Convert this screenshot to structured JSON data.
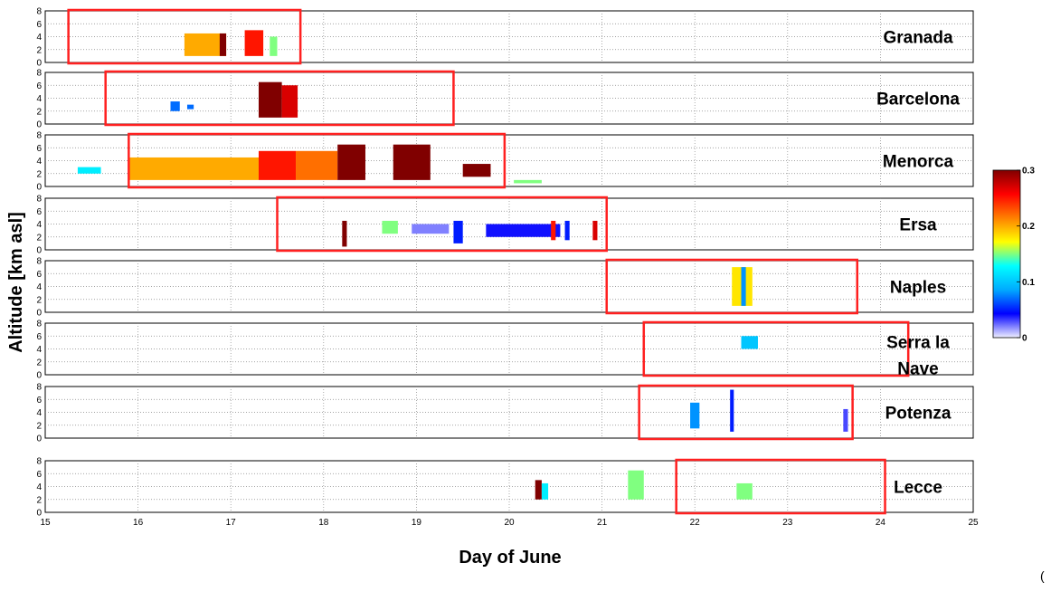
{
  "chart_data": {
    "type": "heatmap",
    "xlabel": "Day of June",
    "ylabel": "Altitude [km asl]",
    "xlim": [
      15,
      25
    ],
    "x_ticks": [
      "15",
      "16",
      "17",
      "18",
      "19",
      "20",
      "21",
      "22",
      "23",
      "24",
      "25"
    ],
    "ylim": [
      0,
      8
    ],
    "y_ticks": [
      "0",
      "2",
      "4",
      "6",
      "8"
    ],
    "grid": true,
    "colorbar": {
      "colors": [
        "#f0f0ff",
        "#0000ff",
        "#00aaff",
        "#00ffff",
        "#ffff00",
        "#ff8000",
        "#ff0000",
        "#800000"
      ],
      "range": [
        0,
        0.3
      ],
      "tick_labels": [
        "0",
        "0.1",
        "0.2",
        "0.3"
      ],
      "tick_values": [
        0,
        0.1,
        0.2,
        0.3
      ]
    },
    "panels": [
      {
        "station": "Granada",
        "label_lines": [
          "Granada"
        ],
        "highlight": [
          15.25,
          17.75
        ],
        "segments": [
          {
            "x0": 16.5,
            "x1": 16.95,
            "y0": 1,
            "y1": 4.5,
            "value": 0.2
          },
          {
            "x0": 16.88,
            "x1": 16.95,
            "y0": 1,
            "y1": 4.5,
            "value": 0.3
          },
          {
            "x0": 17.15,
            "x1": 17.35,
            "y0": 1,
            "y1": 5,
            "value": 0.25
          },
          {
            "x0": 17.42,
            "x1": 17.5,
            "y0": 1,
            "y1": 4,
            "value": 0.15
          }
        ]
      },
      {
        "station": "Barcelona",
        "label_lines": [
          "Barcelona"
        ],
        "highlight": [
          15.65,
          19.4
        ],
        "segments": [
          {
            "x0": 16.35,
            "x1": 16.45,
            "y0": 2,
            "y1": 3.5,
            "value": 0.07
          },
          {
            "x0": 16.53,
            "x1": 16.6,
            "y0": 2.3,
            "y1": 3,
            "value": 0.07
          },
          {
            "x0": 17.3,
            "x1": 17.55,
            "y0": 1,
            "y1": 6.5,
            "value": 0.3
          },
          {
            "x0": 17.55,
            "x1": 17.72,
            "y0": 1,
            "y1": 6,
            "value": 0.27
          }
        ]
      },
      {
        "station": "Menorca",
        "label_lines": [
          "Menorca"
        ],
        "highlight": [
          15.9,
          19.95
        ],
        "segments": [
          {
            "x0": 15.35,
            "x1": 15.6,
            "y0": 2,
            "y1": 3,
            "value": 0.12
          },
          {
            "x0": 15.9,
            "x1": 17.3,
            "y0": 1,
            "y1": 4.5,
            "value": 0.2
          },
          {
            "x0": 17.3,
            "x1": 17.7,
            "y0": 1,
            "y1": 5.5,
            "value": 0.25
          },
          {
            "x0": 17.7,
            "x1": 18.15,
            "y0": 1,
            "y1": 5.5,
            "value": 0.22
          },
          {
            "x0": 18.15,
            "x1": 18.45,
            "y0": 1,
            "y1": 6.5,
            "value": 0.3
          },
          {
            "x0": 18.75,
            "x1": 19.15,
            "y0": 1,
            "y1": 6.5,
            "value": 0.3
          },
          {
            "x0": 19.5,
            "x1": 19.8,
            "y0": 1.5,
            "y1": 3.5,
            "value": 0.3
          },
          {
            "x0": 20.05,
            "x1": 20.35,
            "y0": 0.5,
            "y1": 1,
            "value": 0.15
          }
        ]
      },
      {
        "station": "Ersa",
        "label_lines": [
          "Ersa"
        ],
        "highlight": [
          17.5,
          21.05
        ],
        "segments": [
          {
            "x0": 18.2,
            "x1": 18.25,
            "y0": 0.5,
            "y1": 4.5,
            "value": 0.3
          },
          {
            "x0": 18.63,
            "x1": 18.8,
            "y0": 2.5,
            "y1": 4.5,
            "value": 0.15
          },
          {
            "x0": 18.95,
            "x1": 19.35,
            "y0": 2.5,
            "y1": 4,
            "value": 0.02
          },
          {
            "x0": 19.4,
            "x1": 19.5,
            "y0": 1,
            "y1": 4.5,
            "value": 0.05
          },
          {
            "x0": 19.75,
            "x1": 20.55,
            "y0": 2,
            "y1": 4,
            "value": 0.04
          },
          {
            "x0": 20.45,
            "x1": 20.5,
            "y0": 1.5,
            "y1": 4.5,
            "value": 0.25
          },
          {
            "x0": 20.6,
            "x1": 20.65,
            "y0": 1.5,
            "y1": 4.5,
            "value": 0.05
          },
          {
            "x0": 20.9,
            "x1": 20.95,
            "y0": 1.5,
            "y1": 4.5,
            "value": 0.27
          }
        ]
      },
      {
        "station": "Naples",
        "label_lines": [
          "Naples"
        ],
        "highlight": [
          21.05,
          23.75
        ],
        "segments": [
          {
            "x0": 22.4,
            "x1": 22.62,
            "y0": 1,
            "y1": 7,
            "value": 0.18
          },
          {
            "x0": 22.5,
            "x1": 22.55,
            "y0": 1,
            "y1": 7,
            "value": 0.08
          }
        ]
      },
      {
        "station": "Serra la Nave",
        "label_lines": [
          "Serra la",
          "Nave"
        ],
        "highlight": [
          21.45,
          24.3
        ],
        "segments": [
          {
            "x0": 22.5,
            "x1": 22.68,
            "y0": 4,
            "y1": 6,
            "value": 0.1
          }
        ]
      },
      {
        "station": "Potenza",
        "label_lines": [
          "Potenza"
        ],
        "highlight": [
          21.4,
          23.7
        ],
        "segments": [
          {
            "x0": 21.95,
            "x1": 22.05,
            "y0": 1.5,
            "y1": 5.5,
            "value": 0.08
          },
          {
            "x0": 22.38,
            "x1": 22.42,
            "y0": 1,
            "y1": 7.5,
            "value": 0.05
          },
          {
            "x0": 23.6,
            "x1": 23.65,
            "y0": 1,
            "y1": 4.5,
            "value": 0.03
          }
        ]
      },
      {
        "station": "Lecce",
        "label_lines": [
          "Lecce"
        ],
        "highlight": [
          21.8,
          24.05
        ],
        "segments": [
          {
            "x0": 20.28,
            "x1": 20.35,
            "y0": 2,
            "y1": 5,
            "value": 0.3
          },
          {
            "x0": 20.35,
            "x1": 20.42,
            "y0": 2,
            "y1": 4.5,
            "value": 0.12
          },
          {
            "x0": 21.28,
            "x1": 21.45,
            "y0": 2,
            "y1": 6.5,
            "value": 0.15
          },
          {
            "x0": 22.45,
            "x1": 22.62,
            "y0": 2,
            "y1": 4.5,
            "value": 0.15
          }
        ]
      }
    ]
  },
  "corner_mark": "("
}
